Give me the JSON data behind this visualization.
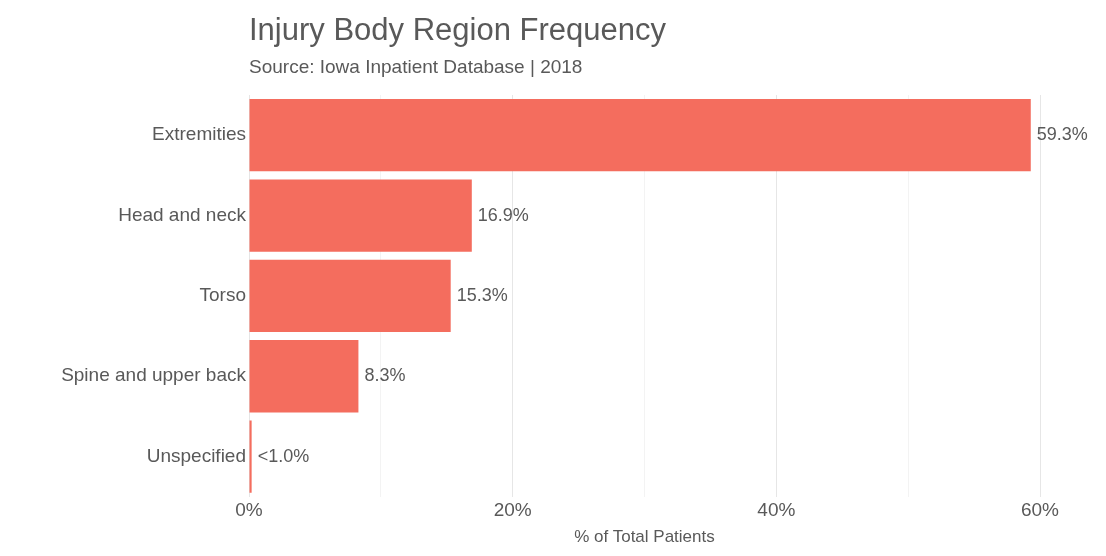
{
  "chart_data": {
    "type": "bar",
    "orientation": "horizontal",
    "title": "Injury Body Region Frequency",
    "subtitle": "Source: Iowa Inpatient Database | 2018",
    "xlabel": "% of Total Patients",
    "categories": [
      "Extremities",
      "Head and neck",
      "Torso",
      "Spine and upper back",
      "Unspecified"
    ],
    "values": [
      59.3,
      16.9,
      15.3,
      8.3,
      0.2
    ],
    "value_labels": [
      "59.3%",
      "16.9%",
      "15.3%",
      "8.3%",
      "<1.0%"
    ],
    "color": "#f46d5e",
    "xlim": [
      0,
      60
    ],
    "xticks": [
      {
        "value": 0,
        "label": "0%"
      },
      {
        "value": 10,
        "label": null
      },
      {
        "value": 20,
        "label": "20%"
      },
      {
        "value": 30,
        "label": null
      },
      {
        "value": 40,
        "label": "40%"
      },
      {
        "value": 50,
        "label": null
      },
      {
        "value": 60,
        "label": "60%"
      }
    ],
    "grid": "x"
  }
}
